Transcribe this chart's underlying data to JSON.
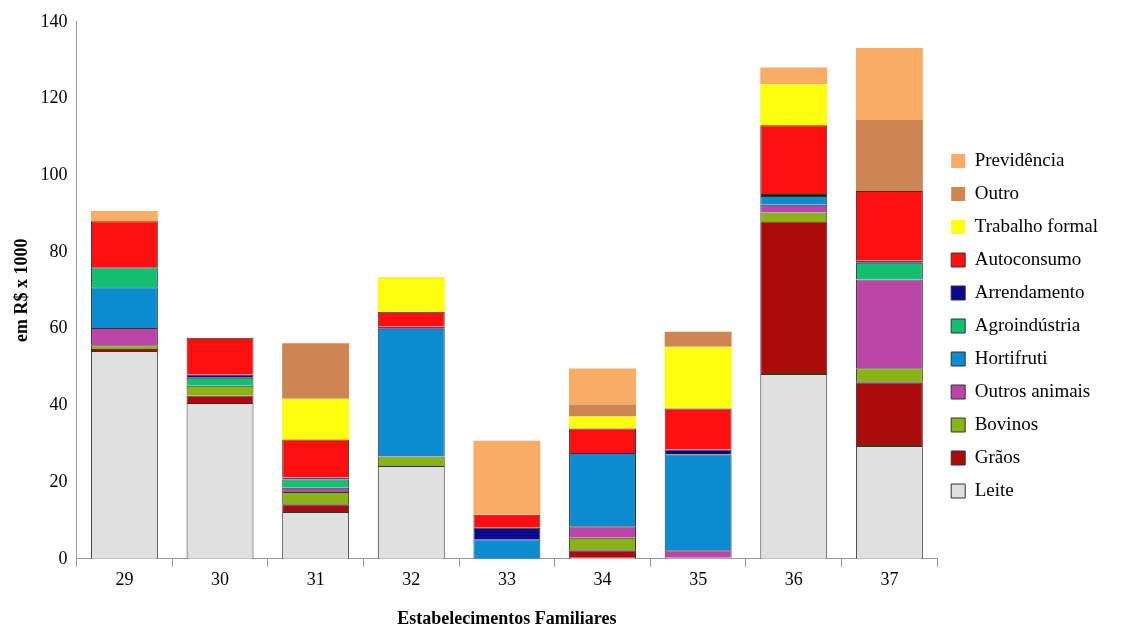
{
  "chart_data": {
    "type": "bar",
    "stacked": true,
    "xlabel": "Estabelecimentos Familiares",
    "ylabel": "em R$ x 1000",
    "categories": [
      "29",
      "30",
      "31",
      "32",
      "33",
      "34",
      "35",
      "36",
      "37"
    ],
    "ylim": [
      0,
      140
    ],
    "yticks": [
      0,
      20,
      40,
      60,
      80,
      100,
      120,
      140
    ],
    "grid": false,
    "legend": "right",
    "series": [
      {
        "name": "Leite",
        "color": "#e0e0e0",
        "values": [
          54.2,
          40.6,
          12.2,
          24.2,
          0,
          0.5,
          0.3,
          48.2,
          29.4
        ]
      },
      {
        "name": "Grãos",
        "color": "#aa0c0c",
        "values": [
          0.5,
          2.0,
          2.0,
          0,
          0,
          1.7,
          0,
          39.8,
          16.6
        ]
      },
      {
        "name": "Bovinos",
        "color": "#8ab414",
        "values": [
          1.0,
          2.5,
          3.2,
          2.5,
          0,
          3.3,
          0,
          2.3,
          3.7
        ]
      },
      {
        "name": "Outros animais",
        "color": "#bb46a8",
        "values": [
          4.5,
          0,
          1.1,
          0,
          0,
          3.0,
          1.9,
          2.0,
          23.1
        ]
      },
      {
        "name": "Hortifruti",
        "color": "#0b8cd0",
        "values": [
          10.6,
          0,
          0,
          33.3,
          5.1,
          19.1,
          25.0,
          2.3,
          0
        ]
      },
      {
        "name": "Agroindústria",
        "color": "#10c070",
        "values": [
          5.2,
          2.1,
          2.2,
          0,
          0,
          0,
          0,
          0,
          4.4
        ]
      },
      {
        "name": "Arrendamento",
        "color": "#0a0a8a",
        "values": [
          0,
          0.8,
          0.5,
          0.5,
          3.0,
          0,
          1.3,
          0.5,
          0.5
        ]
      },
      {
        "name": "Autoconsumo",
        "color": "#ff1010",
        "values": [
          12.0,
          9.6,
          9.9,
          3.9,
          3.4,
          6.4,
          10.7,
          17.9,
          18.2
        ]
      },
      {
        "name": "Trabalho formal",
        "color": "#ffff10",
        "values": [
          0,
          0,
          10.6,
          9.1,
          0,
          3.1,
          16.1,
          10.7,
          0
        ]
      },
      {
        "name": "Outro",
        "color": "#cd8552",
        "values": [
          0,
          0,
          14.5,
          0,
          0,
          3.1,
          3.9,
          0,
          18.5
        ]
      },
      {
        "name": "Previdência",
        "color": "#f8ad66",
        "values": [
          2.7,
          0,
          0,
          0,
          19.3,
          9.4,
          0,
          4.4,
          18.8
        ]
      }
    ]
  }
}
